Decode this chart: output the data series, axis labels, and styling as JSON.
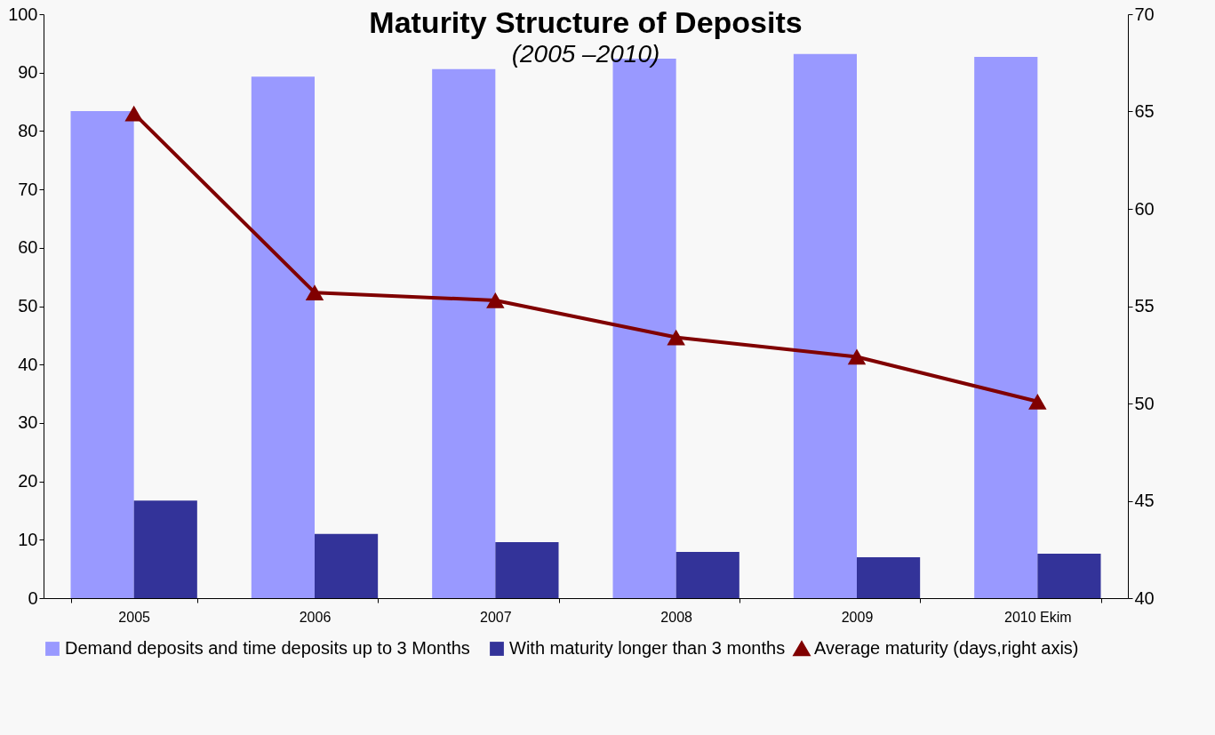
{
  "chart_data": {
    "type": "bar",
    "title": "Maturity Structure of Deposits",
    "subtitle": "(2005 –2010)",
    "categories": [
      "2005",
      "2006",
      "2007",
      "2008",
      "2009",
      "2010 Ekim"
    ],
    "series": [
      {
        "name": "Demand deposits and time deposits up to 3 Months",
        "color": "#9999ff",
        "values": [
          83.4,
          89.3,
          90.6,
          92.4,
          93.2,
          92.7
        ]
      },
      {
        "name": "With maturity longer than 3 months",
        "color": "#333399",
        "values": [
          16.7,
          11.0,
          9.6,
          7.9,
          7.0,
          7.6
        ]
      },
      {
        "name": "Average maturity (days,right axis)",
        "type": "line",
        "axis": "y2",
        "color": "#800000",
        "marker": "triangle",
        "line_style": "solid",
        "values": [
          64.9,
          55.7,
          55.3,
          53.4,
          52.4,
          50.1
        ]
      }
    ],
    "ylim": [
      0,
      100
    ],
    "yticks": [
      0,
      10,
      20,
      30,
      40,
      50,
      60,
      70,
      80,
      90,
      100
    ],
    "y2lim": [
      40,
      70
    ],
    "y2ticks": [
      40,
      45,
      50,
      55,
      60,
      65,
      70
    ],
    "grid": false,
    "legend": "bottom"
  }
}
